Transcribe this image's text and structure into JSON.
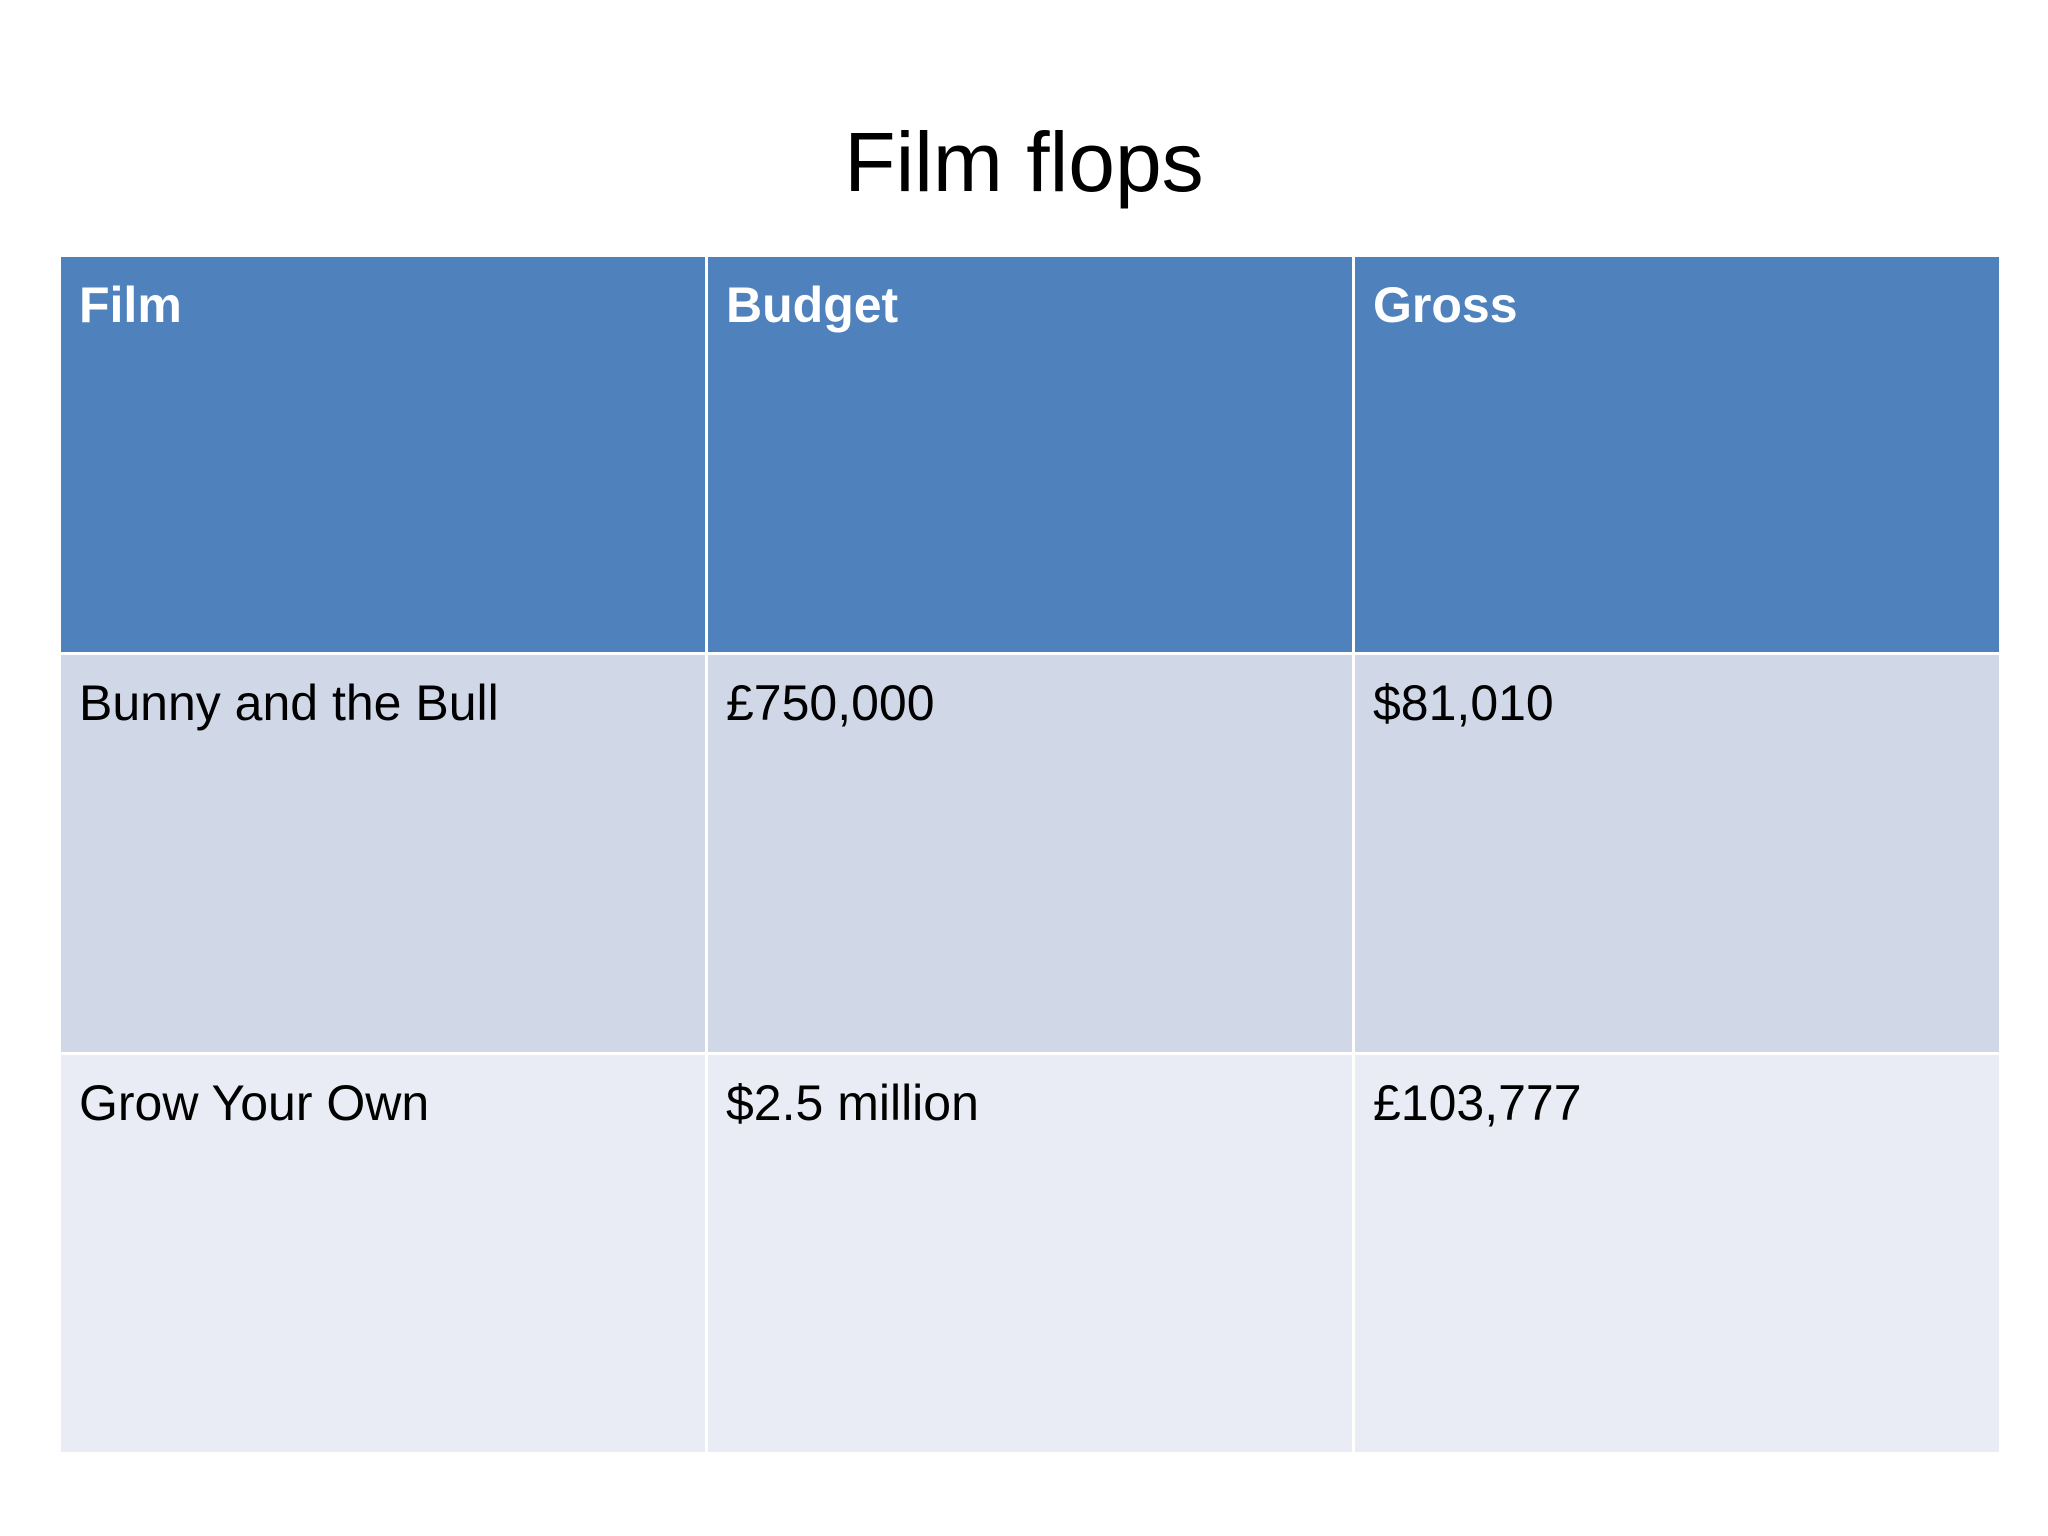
{
  "slide": {
    "title": "Film flops"
  },
  "table": {
    "headers": [
      "Film",
      "Budget",
      "Gross"
    ],
    "rows": [
      [
        "Bunny and the Bull",
        "£750,000",
        "$81,010"
      ],
      [
        "Grow Your Own",
        "$2.5 million",
        "£103,777"
      ]
    ]
  },
  "colors": {
    "header_bg": "#4f81bd",
    "row_odd_bg": "#d0d8e8",
    "row_even_bg": "#e9ecf4",
    "header_text": "#ffffff",
    "body_text": "#000000"
  }
}
